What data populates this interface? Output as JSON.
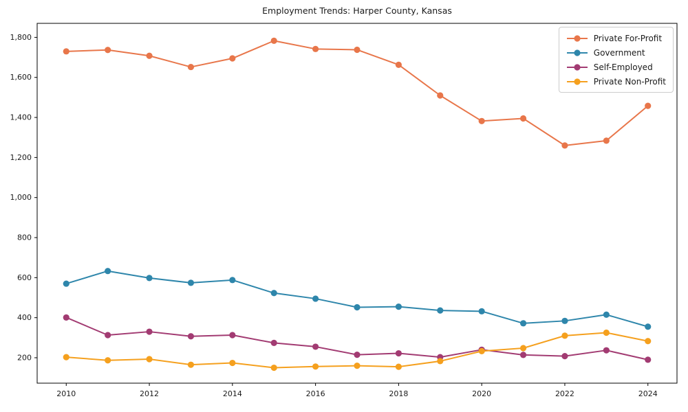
{
  "title": "Employment Trends: Harper County, Kansas",
  "chart_data": {
    "type": "line",
    "title": "Employment Trends: Harper County, Kansas",
    "xlabel": "",
    "ylabel": "",
    "grid": false,
    "legend_position": "upper right",
    "xlim": [
      2009.3,
      2024.7
    ],
    "ylim": [
      73,
      1870
    ],
    "x": [
      2010,
      2011,
      2012,
      2013,
      2014,
      2015,
      2016,
      2017,
      2018,
      2019,
      2020,
      2021,
      2022,
      2023,
      2024
    ],
    "x_ticks": {
      "values": [
        2010,
        2012,
        2014,
        2016,
        2018,
        2020,
        2022,
        2024
      ],
      "labels": [
        "2010",
        "2012",
        "2014",
        "2016",
        "2018",
        "2020",
        "2022",
        "2024"
      ]
    },
    "y_ticks": {
      "values": [
        200,
        400,
        600,
        800,
        1000,
        1200,
        1400,
        1600,
        1800
      ],
      "labels": [
        "200",
        "400",
        "600",
        "800",
        "1,000",
        "1,200",
        "1,400",
        "1,600",
        "1,800"
      ]
    },
    "series": [
      {
        "name": "Private For-Profit",
        "color": "#E8764A",
        "values": [
          1730,
          1737,
          1708,
          1652,
          1695,
          1783,
          1742,
          1738,
          1663,
          1510,
          1382,
          1395,
          1260,
          1284,
          1458
        ]
      },
      {
        "name": "Government",
        "color": "#2E86AB",
        "values": [
          570,
          633,
          598,
          574,
          588,
          523,
          495,
          452,
          455,
          436,
          432,
          372,
          384,
          415,
          355
        ]
      },
      {
        "name": "Self-Employed",
        "color": "#A23B72",
        "values": [
          401,
          313,
          330,
          307,
          313,
          274,
          255,
          215,
          222,
          203,
          240,
          214,
          208,
          237,
          190
        ]
      },
      {
        "name": "Private Non-Profit",
        "color": "#F5A01E",
        "values": [
          203,
          187,
          193,
          165,
          174,
          150,
          156,
          160,
          155,
          183,
          233,
          248,
          310,
          325,
          283
        ]
      }
    ]
  }
}
